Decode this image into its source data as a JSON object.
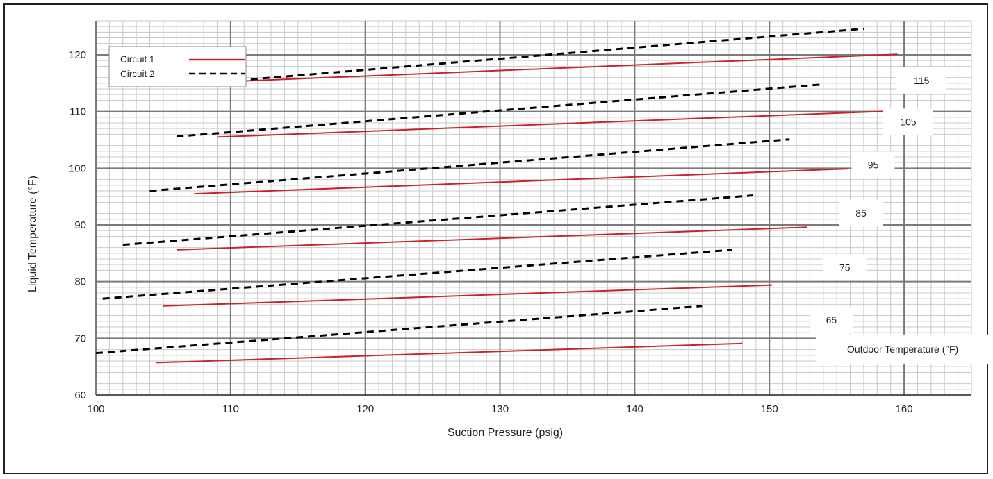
{
  "chart_data": {
    "type": "line",
    "title": "",
    "xlabel": "Suction Pressure (psig)",
    "ylabel": "Liquid Temperature (°F)",
    "xlim": [
      100,
      165
    ],
    "ylim": [
      60,
      126
    ],
    "x_ticks": [
      100,
      110,
      120,
      130,
      140,
      150,
      160
    ],
    "y_ticks": [
      60,
      70,
      80,
      90,
      100,
      110,
      120
    ],
    "grid": true,
    "legend": {
      "position": "top-left",
      "entries": [
        {
          "name": "Circuit 1",
          "color": "#c8242b",
          "style": "solid"
        },
        {
          "name": "Circuit 2",
          "color": "#000000",
          "style": "dashed"
        }
      ]
    },
    "series": [
      {
        "name": "Circuit 1",
        "outdoor_label": "115",
        "points": [
          [
            111,
            115.4
          ],
          [
            159.5,
            120.1
          ]
        ]
      },
      {
        "name": "Circuit 2",
        "outdoor_label": "115",
        "points": [
          [
            108,
            115.0
          ],
          [
            157,
            124.6
          ]
        ]
      },
      {
        "name": "Circuit 1",
        "outdoor_label": "105",
        "points": [
          [
            109,
            105.5
          ],
          [
            159,
            110.1
          ]
        ]
      },
      {
        "name": "Circuit 2",
        "outdoor_label": "105",
        "points": [
          [
            106,
            105.6
          ],
          [
            154,
            114.8
          ]
        ]
      },
      {
        "name": "Circuit 1",
        "outdoor_label": "95",
        "points": [
          [
            107.3,
            95.5
          ],
          [
            155.8,
            99.9
          ]
        ]
      },
      {
        "name": "Circuit 2",
        "outdoor_label": "95",
        "points": [
          [
            104,
            96.0
          ],
          [
            151.5,
            105.1
          ]
        ]
      },
      {
        "name": "Circuit 1",
        "outdoor_label": "85",
        "points": [
          [
            106,
            85.6
          ],
          [
            152.8,
            89.6
          ]
        ]
      },
      {
        "name": "Circuit 2",
        "outdoor_label": "85",
        "points": [
          [
            102,
            86.5
          ],
          [
            148.8,
            95.2
          ]
        ]
      },
      {
        "name": "Circuit 1",
        "outdoor_label": "75",
        "points": [
          [
            105,
            75.7
          ],
          [
            150.2,
            79.4
          ]
        ]
      },
      {
        "name": "Circuit 2",
        "outdoor_label": "75",
        "points": [
          [
            100.5,
            77.0
          ],
          [
            147.2,
            85.6
          ]
        ]
      },
      {
        "name": "Circuit 1",
        "outdoor_label": "65",
        "points": [
          [
            104.5,
            65.7
          ],
          [
            148,
            69.1
          ]
        ]
      },
      {
        "name": "Circuit 2",
        "outdoor_label": "65",
        "points": [
          [
            100,
            67.4
          ],
          [
            145,
            75.7
          ]
        ]
      }
    ],
    "annotations": [
      {
        "text": "115",
        "x": 161.3,
        "y": 115.5
      },
      {
        "text": "105",
        "x": 160.3,
        "y": 108.2
      },
      {
        "text": "95",
        "x": 157.7,
        "y": 100.6
      },
      {
        "text": "85",
        "x": 156.8,
        "y": 92.1
      },
      {
        "text": "75",
        "x": 155.6,
        "y": 82.5
      },
      {
        "text": "65",
        "x": 154.6,
        "y": 73.2
      },
      {
        "text": "Outdoor Temperature (°F)",
        "x": 159.9,
        "y": 68.1
      }
    ]
  }
}
